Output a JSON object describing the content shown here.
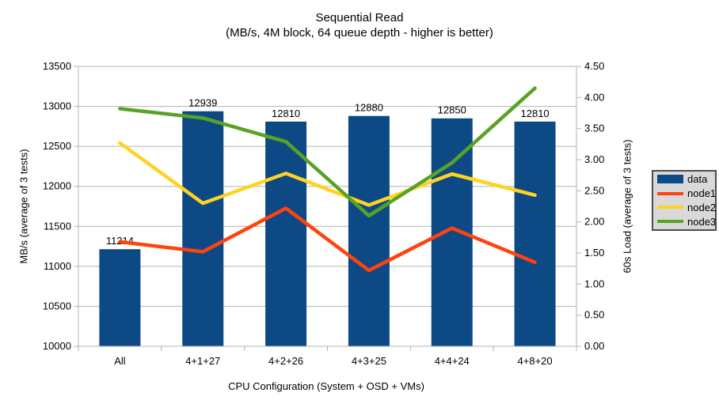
{
  "title": "Sequential Read",
  "subtitle": "(MB/s, 4M block, 64 queue depth - higher is better)",
  "chart_data": {
    "type": "bar+line",
    "title": "Sequential Read",
    "subtitle": "(MB/s, 4M block, 64 queue depth - higher is better)",
    "categories": [
      "All",
      "4+1+27",
      "4+2+26",
      "4+3+25",
      "4+4+24",
      "4+8+20"
    ],
    "series": [
      {
        "name": "data",
        "type": "bar",
        "axis": "left",
        "color": "#0d4a85",
        "values": [
          11214,
          12939,
          12810,
          12880,
          12850,
          12810
        ],
        "data_labels": [
          "11214",
          "12939",
          "12810",
          "12880",
          "12850",
          "12810"
        ]
      },
      {
        "name": "node1",
        "type": "line",
        "axis": "right",
        "color": "#ff420e",
        "values": [
          1.68,
          1.52,
          2.22,
          1.22,
          1.9,
          1.35
        ]
      },
      {
        "name": "node2",
        "type": "line",
        "axis": "right",
        "color": "#ffd320",
        "values": [
          3.27,
          2.3,
          2.78,
          2.27,
          2.77,
          2.43
        ]
      },
      {
        "name": "node3",
        "type": "line",
        "axis": "right",
        "color": "#58a325",
        "values": [
          3.82,
          3.67,
          3.29,
          2.1,
          2.95,
          4.15
        ]
      }
    ],
    "xlabel": "CPU Configuration (System + OSD + VMs)",
    "left_axis": {
      "label": "MB/s (average of 3 tests)",
      "min": 10000,
      "max": 13500,
      "step": 500,
      "tick_labels": [
        "10000",
        "10500",
        "11000",
        "11500",
        "12000",
        "12500",
        "13000",
        "13500"
      ]
    },
    "right_axis": {
      "label": "60s Load (average of 3 tests)",
      "min": 0,
      "max": 4.5,
      "step": 0.5,
      "tick_labels": [
        "0.00",
        "0.50",
        "1.00",
        "1.50",
        "2.00",
        "2.50",
        "3.00",
        "3.50",
        "4.00",
        "4.50"
      ]
    },
    "grid": "horizontal-only",
    "grid_color": "#b3b3b3",
    "axis_color": "#b3b3b3",
    "legend_position": "right"
  },
  "legend": {
    "items": [
      {
        "label": "data",
        "color": "#0d4a85",
        "type": "box"
      },
      {
        "label": "node1",
        "color": "#ff420e",
        "type": "line"
      },
      {
        "label": "node2",
        "color": "#ffd320",
        "type": "line"
      },
      {
        "label": "node3",
        "color": "#58a325",
        "type": "line"
      }
    ]
  }
}
